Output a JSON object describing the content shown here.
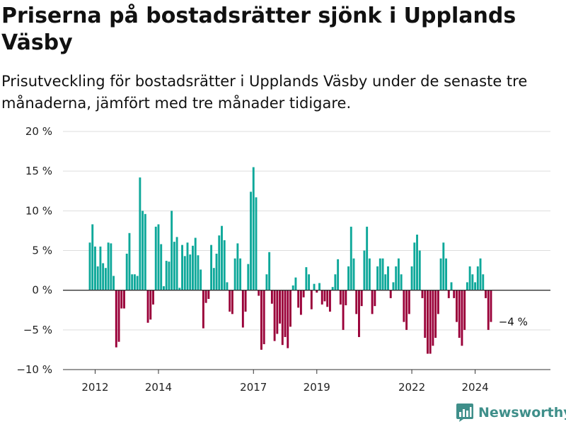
{
  "title": "Priserna på bostadsrätter sjönk i Upplands Väsby",
  "subtitle": "Prisutveckling för bostadsrätter i Upplands Väsby under de senaste tre månaderna, jämfört med tre månader tidigare.",
  "brand": {
    "name": "Newsworthy",
    "logo_icon": "bar-chart-logo-icon"
  },
  "colors": {
    "positive": "#0ea89a",
    "negative": "#9a0039",
    "grid": "#dddddd",
    "zero_line": "#333333",
    "brand": "#3f8f8a"
  },
  "chart_data": {
    "type": "bar",
    "x_start": "2011-11",
    "x_interval": "month",
    "ylim": [
      -10,
      20
    ],
    "yticks": [
      -10,
      -5,
      0,
      5,
      10,
      15,
      20
    ],
    "ytick_labels": [
      "−10 %",
      "−5 %",
      "0 %",
      "5 %",
      "10 %",
      "15 %",
      "20 %"
    ],
    "xticks": [
      {
        "date": "2012-01",
        "label": "2012"
      },
      {
        "date": "2014-01",
        "label": "2014"
      },
      {
        "date": "2017-01",
        "label": "2017"
      },
      {
        "date": "2019-01",
        "label": "2019"
      },
      {
        "date": "2022-01",
        "label": "2022"
      },
      {
        "date": "2024-01",
        "label": "2024"
      }
    ],
    "grid": true,
    "annotation": {
      "text": "−4 %",
      "date": "2024-08",
      "value": -4
    },
    "values": [
      6,
      8.3,
      5.5,
      3,
      5.5,
      3.4,
      2.8,
      6,
      5.9,
      1.8,
      -7.2,
      -6.5,
      -2.3,
      -2.3,
      4.6,
      7.2,
      2,
      2,
      1.8,
      14.2,
      10,
      9.6,
      -4.1,
      -3.7,
      -1.8,
      8,
      8.3,
      5.8,
      0.5,
      3.7,
      3.6,
      10,
      6.1,
      6.7,
      0.3,
      5.7,
      4.3,
      6,
      4.5,
      5.6,
      6.6,
      4.4,
      2.6,
      -4.8,
      -1.6,
      -1.1,
      5.7,
      2.8,
      4.6,
      6.9,
      8.1,
      6.3,
      1,
      -2.7,
      -3,
      4,
      5.9,
      4,
      -4.7,
      -2.7,
      3.3,
      12.4,
      15.5,
      11.7,
      -0.7,
      -7.5,
      -6.8,
      2,
      4.8,
      -1.7,
      -6.4,
      -5.5,
      -4.2,
      -6.9,
      -5.9,
      -7.3,
      -4.6,
      0.6,
      1.6,
      -2.2,
      -3.1,
      -0.9,
      2.9,
      2,
      -2.4,
      0.8,
      -0.3,
      0.9,
      -1.8,
      -1.4,
      -2.1,
      -2.7,
      0.4,
      2,
      3.9,
      -1.8,
      -5,
      -1.9,
      3,
      8,
      4,
      -3,
      -5.9,
      -2,
      5,
      8,
      4,
      -3,
      -2,
      3,
      4,
      4,
      2,
      3,
      -1,
      1,
      3,
      4,
      2,
      -4,
      -5,
      -3,
      3,
      6,
      7,
      5,
      -1,
      -6,
      -8,
      -8,
      -7,
      -6,
      -3,
      4,
      6,
      4,
      -1,
      1,
      -1,
      -4,
      -6,
      -7,
      -5,
      1,
      3,
      2,
      1,
      3,
      4,
      2,
      -1,
      -5,
      -4
    ]
  }
}
